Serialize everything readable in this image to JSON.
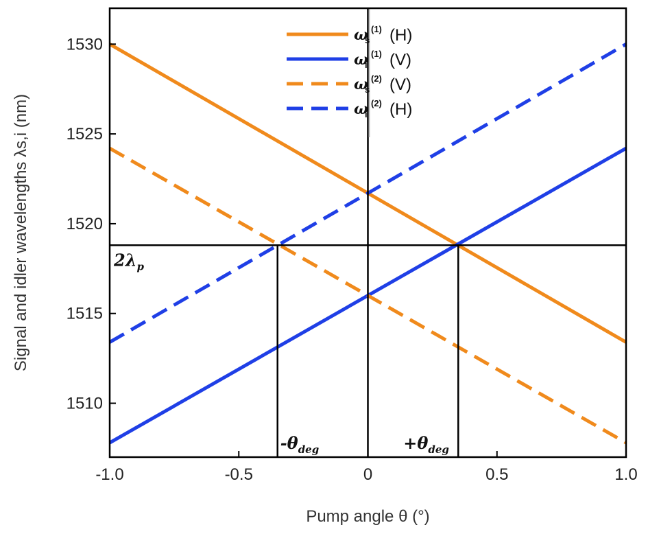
{
  "chart_data": {
    "type": "line",
    "xlabel": "Pump angle θ (°)",
    "ylabel": "Signal and idler wavelengths λs,i (nm)",
    "xlim": [
      -1.0,
      1.0
    ],
    "ylim": [
      1507,
      1532
    ],
    "x_ticks": [
      "-1.0",
      "-0.5",
      "0",
      "0.5",
      "1.0"
    ],
    "x_tick_values": [
      -1.0,
      -0.5,
      0,
      0.5,
      1.0
    ],
    "y_ticks": [
      "1510",
      "1515",
      "1520",
      "1525",
      "1530"
    ],
    "y_tick_values": [
      1510,
      1515,
      1520,
      1525,
      1530
    ],
    "grid": false,
    "legend_position": "top-center",
    "series": [
      {
        "name": "ωs(1) (H)",
        "symbol": "ω",
        "sub": "s",
        "sup": "(1)",
        "pol": "(H)",
        "color": "#F08A1C",
        "style": "solid",
        "x": [
          -1.0,
          1.0
        ],
        "y": [
          1530.0,
          1513.4
        ]
      },
      {
        "name": "ωi(1) (V)",
        "symbol": "ω",
        "sub": "i",
        "sup": "(1)",
        "pol": "(V)",
        "color": "#1F3FE6",
        "style": "solid",
        "x": [
          -1.0,
          1.0
        ],
        "y": [
          1507.8,
          1524.2
        ]
      },
      {
        "name": "ωs(2) (V)",
        "symbol": "ω",
        "sub": "s",
        "sup": "(2)",
        "pol": "(V)",
        "color": "#F08A1C",
        "style": "dashed",
        "x": [
          -1.0,
          1.0
        ],
        "y": [
          1524.2,
          1507.8
        ]
      },
      {
        "name": "ωi(2) (H)",
        "symbol": "ω",
        "sub": "i",
        "sup": "(2)",
        "pol": "(H)",
        "color": "#1F3FE6",
        "style": "dashed",
        "x": [
          -1.0,
          1.0
        ],
        "y": [
          1513.4,
          1530.0
        ]
      }
    ],
    "reference_lines": {
      "horizontal_y": 1518.8,
      "vertical_x": [
        -0.35,
        0,
        0.35
      ]
    },
    "annotations": {
      "two_lambda_p": {
        "main": "2λ",
        "sub": "p"
      },
      "minus_theta_deg": {
        "main": "-θ",
        "sub": "deg"
      },
      "plus_theta_deg": {
        "main": "+θ",
        "sub": "deg"
      }
    }
  }
}
